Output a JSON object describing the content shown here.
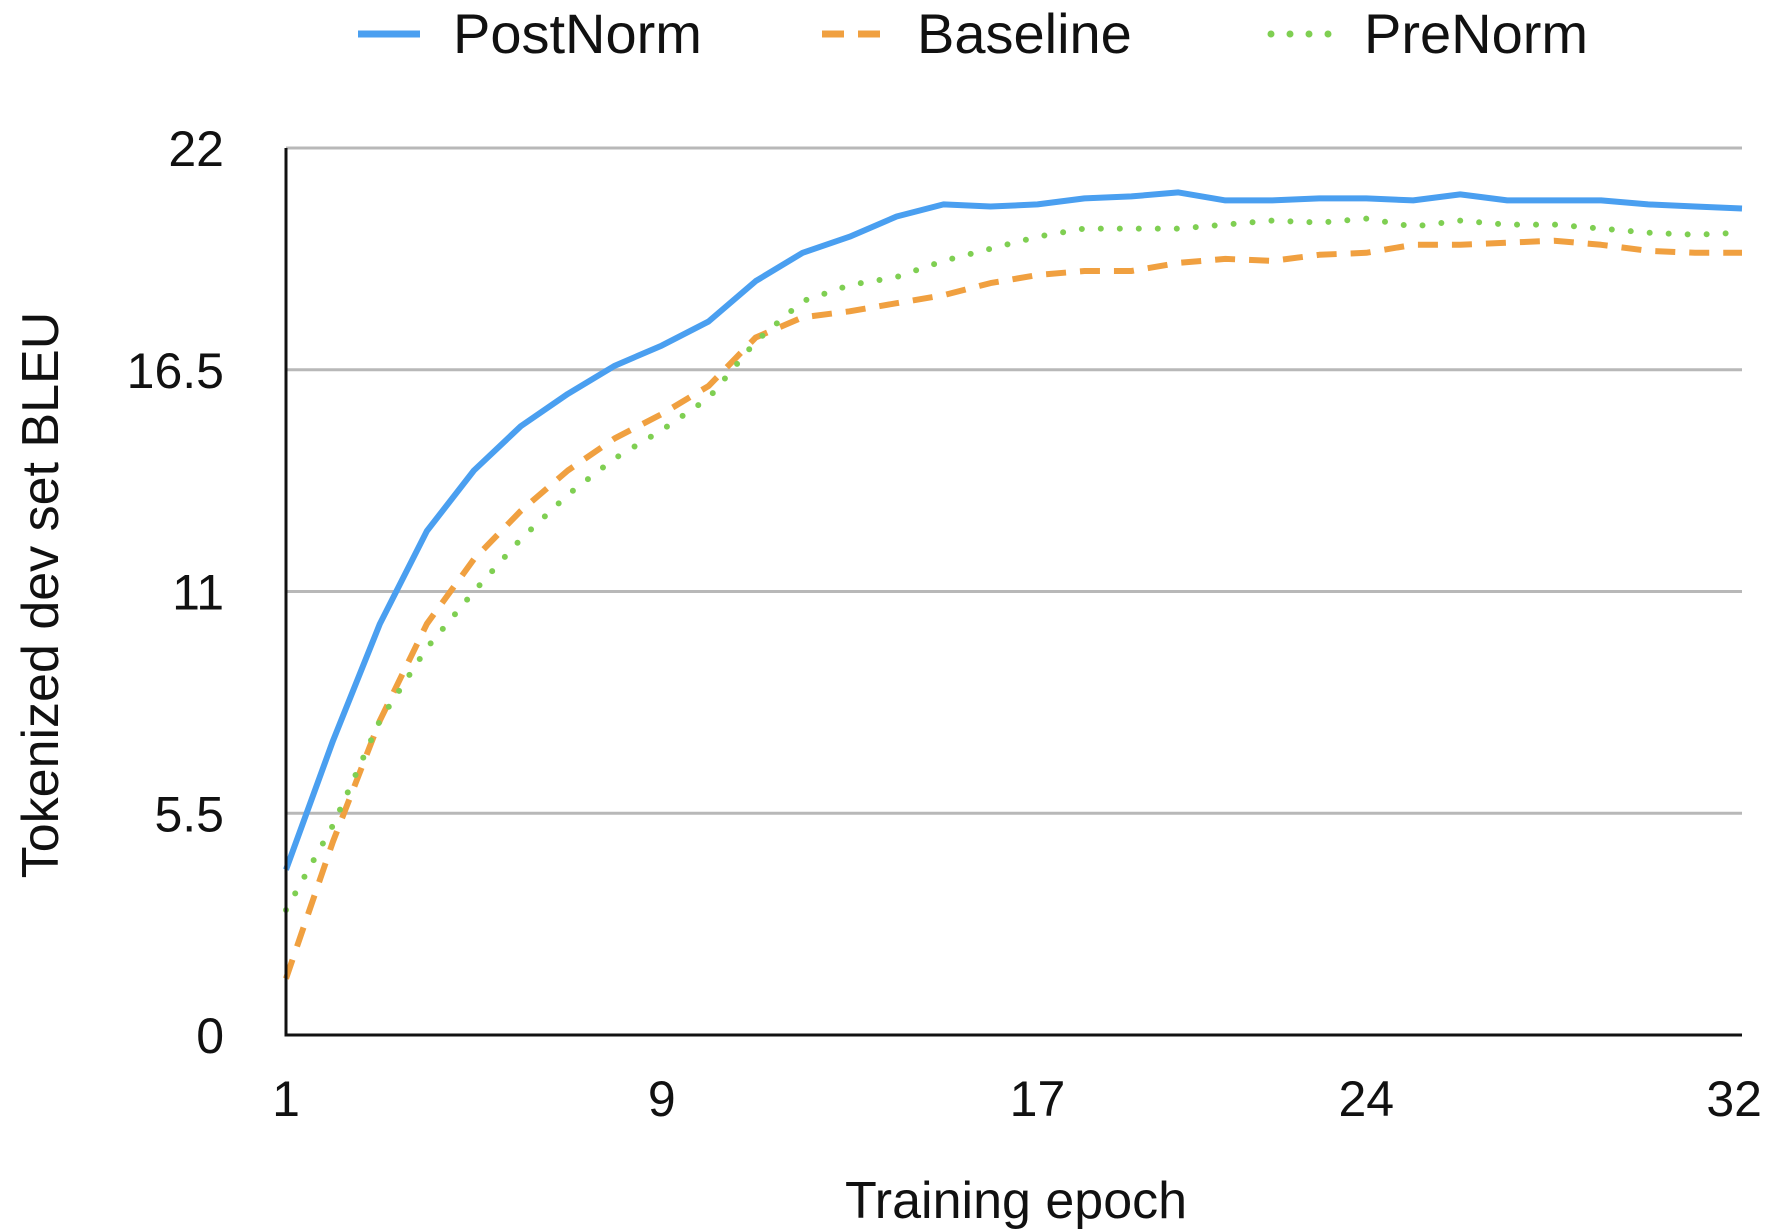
{
  "chart_data": {
    "type": "line",
    "title": "",
    "xlabel": "Training epoch",
    "ylabel": "Tokenized dev set BLEU",
    "xlim": [
      1,
      32
    ],
    "ylim": [
      0,
      22
    ],
    "x_ticks": [
      {
        "value": 1,
        "label": "1"
      },
      {
        "value": 9,
        "label": "9"
      },
      {
        "value": 17,
        "label": "17"
      },
      {
        "value": 24,
        "label": "24"
      },
      {
        "value": 32,
        "label": "32"
      }
    ],
    "y_ticks": [
      {
        "value": 0,
        "label": "0"
      },
      {
        "value": 5.5,
        "label": "5.5"
      },
      {
        "value": 11,
        "label": "11"
      },
      {
        "value": 16.5,
        "label": "16.5"
      },
      {
        "value": 22,
        "label": "22"
      }
    ],
    "grid": true,
    "legend_position": "top",
    "x": [
      1,
      2,
      3,
      4,
      5,
      6,
      7,
      8,
      9,
      10,
      11,
      12,
      13,
      14,
      15,
      16,
      17,
      18,
      19,
      20,
      21,
      22,
      23,
      24,
      25,
      26,
      27,
      28,
      29,
      30,
      31,
      32
    ],
    "series": [
      {
        "name": "PostNorm",
        "color": "#4a9ff0",
        "style": "solid",
        "values": [
          4.1,
          7.3,
          10.2,
          12.5,
          14.0,
          15.1,
          15.9,
          16.6,
          17.1,
          17.7,
          18.7,
          19.4,
          19.8,
          20.3,
          20.6,
          20.55,
          20.6,
          20.75,
          20.8,
          20.9,
          20.7,
          20.7,
          20.75,
          20.75,
          20.7,
          20.85,
          20.7,
          20.7,
          20.7,
          20.6,
          20.55,
          20.5
        ]
      },
      {
        "name": "Baseline",
        "color": "#f0a040",
        "style": "dashed",
        "values": [
          1.4,
          4.8,
          7.8,
          10.2,
          11.8,
          13.0,
          14.0,
          14.8,
          15.4,
          16.1,
          17.3,
          17.8,
          17.95,
          18.15,
          18.35,
          18.65,
          18.85,
          18.95,
          18.95,
          19.15,
          19.25,
          19.2,
          19.35,
          19.4,
          19.6,
          19.6,
          19.65,
          19.7,
          19.6,
          19.45,
          19.4,
          19.4
        ]
      },
      {
        "name": "PreNorm",
        "color": "#7fcf52",
        "style": "dotted",
        "values": [
          3.1,
          5.2,
          7.8,
          9.6,
          11.0,
          12.3,
          13.4,
          14.3,
          15.0,
          15.8,
          17.2,
          18.2,
          18.6,
          18.8,
          19.2,
          19.5,
          19.8,
          20.0,
          20.0,
          20.0,
          20.1,
          20.2,
          20.15,
          20.25,
          20.05,
          20.2,
          20.1,
          20.1,
          20.0,
          19.9,
          19.85,
          19.9
        ]
      }
    ]
  }
}
